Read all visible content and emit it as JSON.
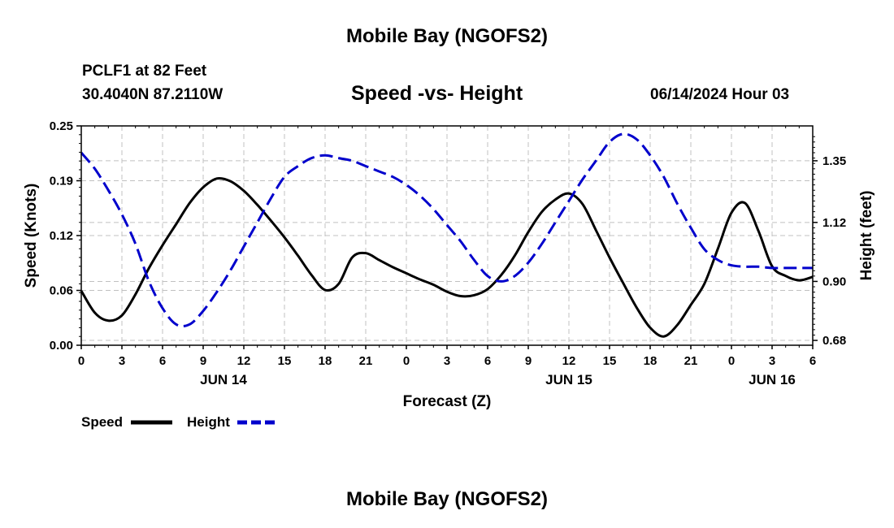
{
  "header": {
    "title": "Mobile Bay (NGOFS2)",
    "station": "PCLF1 at 82 Feet",
    "coords": "30.4040N  87.2110W",
    "subtitle": "Speed -vs- Height",
    "datetime": "06/14/2024 Hour 03"
  },
  "footer": {
    "title": "Mobile Bay (NGOFS2)"
  },
  "colors": {
    "speed": "#000000",
    "height": "#0000cc",
    "grid": "#c0c0c0"
  },
  "chart_data": {
    "type": "line",
    "title": "Speed -vs- Height",
    "xlabel": "Forecast (Z)",
    "ylabel": "Speed (Knots)",
    "y2label": "Height (feet)",
    "grid": true,
    "legend_position": "bottom-left",
    "x_unit": "hours from 00Z Jun 14",
    "xlim": [
      0,
      54
    ],
    "ylim": [
      0,
      0.25
    ],
    "y2lim": [
      0.662,
      1.48
    ],
    "x_ticks": [
      {
        "x": 0,
        "label": "0"
      },
      {
        "x": 3,
        "label": "3"
      },
      {
        "x": 6,
        "label": "6"
      },
      {
        "x": 9,
        "label": "9"
      },
      {
        "x": 12,
        "label": "12"
      },
      {
        "x": 15,
        "label": "15"
      },
      {
        "x": 18,
        "label": "18"
      },
      {
        "x": 21,
        "label": "21"
      },
      {
        "x": 24,
        "label": "0"
      },
      {
        "x": 27,
        "label": "3"
      },
      {
        "x": 30,
        "label": "6"
      },
      {
        "x": 33,
        "label": "9"
      },
      {
        "x": 36,
        "label": "12"
      },
      {
        "x": 39,
        "label": "15"
      },
      {
        "x": 42,
        "label": "18"
      },
      {
        "x": 45,
        "label": "21"
      },
      {
        "x": 48,
        "label": "0"
      },
      {
        "x": 51,
        "label": "3"
      },
      {
        "x": 54,
        "label": "6"
      }
    ],
    "day_labels": [
      {
        "x": 10.5,
        "label": "JUN 14"
      },
      {
        "x": 36,
        "label": "JUN 15"
      },
      {
        "x": 51,
        "label": "JUN 16"
      }
    ],
    "y_ticks": [
      {
        "v": 0.0,
        "label": "0.00"
      },
      {
        "v": 0.0625,
        "label": "0.06"
      },
      {
        "v": 0.125,
        "label": "0.12"
      },
      {
        "v": 0.1875,
        "label": "0.19"
      },
      {
        "v": 0.25,
        "label": "0.25"
      }
    ],
    "y2_ticks": [
      {
        "v": 0.68,
        "label": "0.68"
      },
      {
        "v": 0.9,
        "label": "0.90"
      },
      {
        "v": 1.12,
        "label": "1.12"
      },
      {
        "v": 1.35,
        "label": "1.35"
      }
    ],
    "series": [
      {
        "name": "Speed",
        "axis": "left",
        "color": "#000000",
        "dash": "solid",
        "x": [
          0,
          1,
          2,
          3,
          4,
          5,
          6,
          7,
          8,
          9,
          10,
          11,
          12,
          13,
          14,
          15,
          16,
          17,
          18,
          19,
          20,
          21,
          22,
          23,
          24,
          25,
          26,
          27,
          28,
          29,
          30,
          31,
          32,
          33,
          34,
          35,
          36,
          37,
          38,
          39,
          40,
          41,
          42,
          43,
          44,
          45,
          46,
          47,
          48,
          49,
          50,
          51,
          52,
          53,
          54
        ],
        "values": [
          0.062,
          0.037,
          0.028,
          0.034,
          0.058,
          0.088,
          0.114,
          0.138,
          0.162,
          0.18,
          0.19,
          0.187,
          0.176,
          0.16,
          0.142,
          0.123,
          0.102,
          0.08,
          0.063,
          0.07,
          0.1,
          0.105,
          0.097,
          0.089,
          0.082,
          0.075,
          0.069,
          0.061,
          0.056,
          0.057,
          0.064,
          0.08,
          0.102,
          0.129,
          0.152,
          0.166,
          0.173,
          0.161,
          0.131,
          0.1,
          0.071,
          0.043,
          0.02,
          0.01,
          0.023,
          0.046,
          0.07,
          0.11,
          0.151,
          0.162,
          0.13,
          0.09,
          0.079,
          0.074,
          0.078
        ]
      },
      {
        "name": "Height",
        "axis": "right",
        "color": "#0000cc",
        "dash": "dashed",
        "x": [
          0,
          1,
          2,
          3,
          4,
          5,
          6,
          7,
          8,
          9,
          10,
          11,
          12,
          13,
          14,
          15,
          16,
          17,
          18,
          19,
          20,
          21,
          22,
          23,
          24,
          25,
          26,
          27,
          28,
          29,
          30,
          31,
          32,
          33,
          34,
          35,
          36,
          37,
          38,
          39,
          40,
          41,
          42,
          43,
          44,
          45,
          46,
          47,
          48,
          49,
          50,
          51,
          52,
          53,
          54
        ],
        "values": [
          1.38,
          1.32,
          1.24,
          1.15,
          1.04,
          0.9,
          0.8,
          0.74,
          0.74,
          0.79,
          0.86,
          0.94,
          1.03,
          1.12,
          1.21,
          1.29,
          1.33,
          1.36,
          1.37,
          1.36,
          1.35,
          1.33,
          1.31,
          1.29,
          1.26,
          1.22,
          1.17,
          1.11,
          1.05,
          0.98,
          0.92,
          0.9,
          0.92,
          0.97,
          1.04,
          1.12,
          1.2,
          1.28,
          1.35,
          1.42,
          1.45,
          1.43,
          1.37,
          1.29,
          1.19,
          1.1,
          1.02,
          0.98,
          0.96,
          0.955,
          0.955,
          0.95,
          0.95,
          0.95,
          0.95
        ]
      }
    ]
  }
}
